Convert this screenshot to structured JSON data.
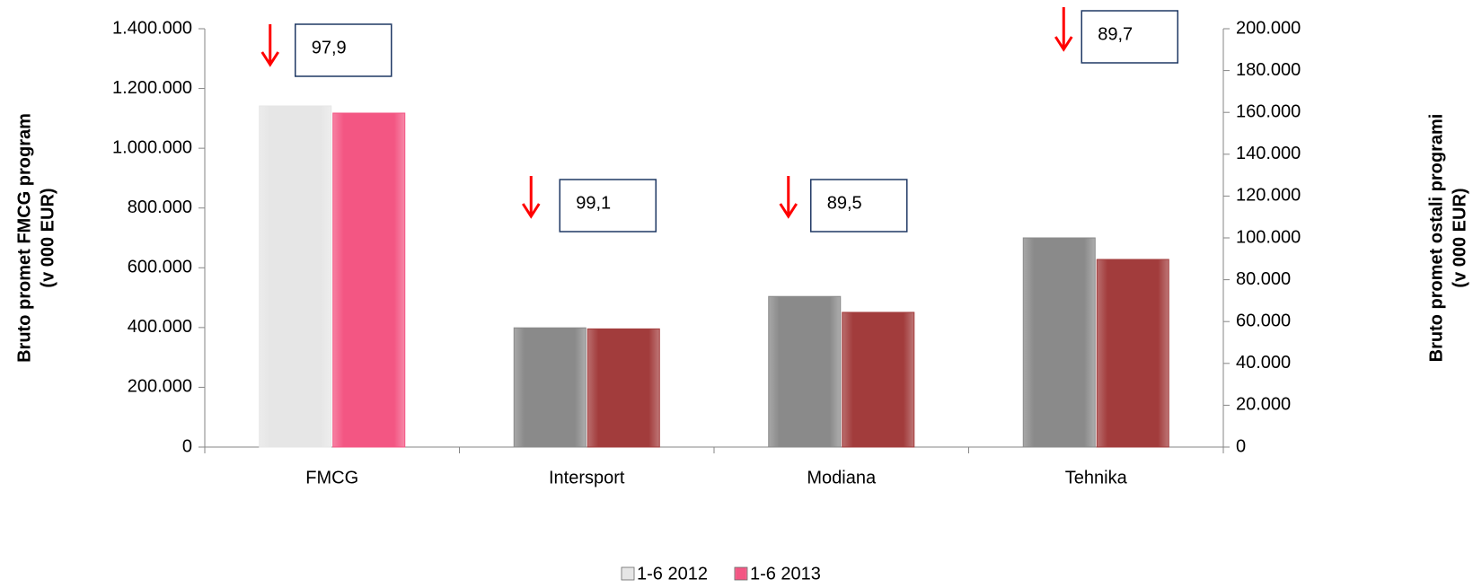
{
  "chart_data": {
    "type": "bar",
    "categories": [
      "FMCG",
      "Intersport",
      "Modiana",
      "Tehnika"
    ],
    "axis_by_category": [
      "y",
      "y2",
      "y2",
      "y2"
    ],
    "series": [
      {
        "name": "1-6 2012",
        "color": "#e6e6e6",
        "colors": [
          "#e6e6e6",
          "#8a8a8a",
          "#8a8a8a",
          "#8a8a8a"
        ],
        "values": [
          1141600,
          57000,
          72000,
          100000
        ]
      },
      {
        "name": "1-6 2013",
        "color": "#f35683",
        "colors": [
          "#f35683",
          "#a23c3c",
          "#a23c3c",
          "#a23c3c"
        ],
        "values": [
          1117600,
          56500,
          64400,
          89700
        ]
      }
    ],
    "ylabel": [
      "Bruto promet FMCG program",
      "(v 000 EUR)"
    ],
    "y2label": [
      "Bruto promet ostali programi",
      "(v 000 EUR)"
    ],
    "ylim": [
      0,
      1400000
    ],
    "yticks": [
      0,
      {
        "value": 200000,
        "label": "200.000"
      },
      {
        "value": 400000,
        "label": "400.000"
      },
      {
        "value": 600000,
        "label": "600.000"
      },
      {
        "value": 800000,
        "label": "800.000"
      },
      {
        "value": 1000000,
        "label": "1.000.000"
      },
      {
        "value": 1200000,
        "label": "1.200.000"
      },
      {
        "value": 1400000,
        "label": "1.400.000"
      }
    ],
    "y2lim": [
      0,
      200000
    ],
    "y2ticks": [
      0,
      {
        "value": 20000,
        "label": "20.000"
      },
      {
        "value": 40000,
        "label": "40.000"
      },
      {
        "value": 60000,
        "label": "60.000"
      },
      {
        "value": 80000,
        "label": "80.000"
      },
      {
        "value": 100000,
        "label": "100.000"
      },
      {
        "value": 120000,
        "label": "120.000"
      },
      {
        "value": 140000,
        "label": "140.000"
      },
      {
        "value": 160000,
        "label": "160.000"
      },
      {
        "value": 180000,
        "label": "180.000"
      },
      {
        "value": 200000,
        "label": "200.000"
      }
    ],
    "annotations": [
      {
        "category": "FMCG",
        "text": "97,9"
      },
      {
        "category": "Intersport",
        "text": "99,1"
      },
      {
        "category": "Modiana",
        "text": "89,5"
      },
      {
        "category": "Tehnika",
        "text": "89,7"
      }
    ],
    "legend": "bottom"
  }
}
